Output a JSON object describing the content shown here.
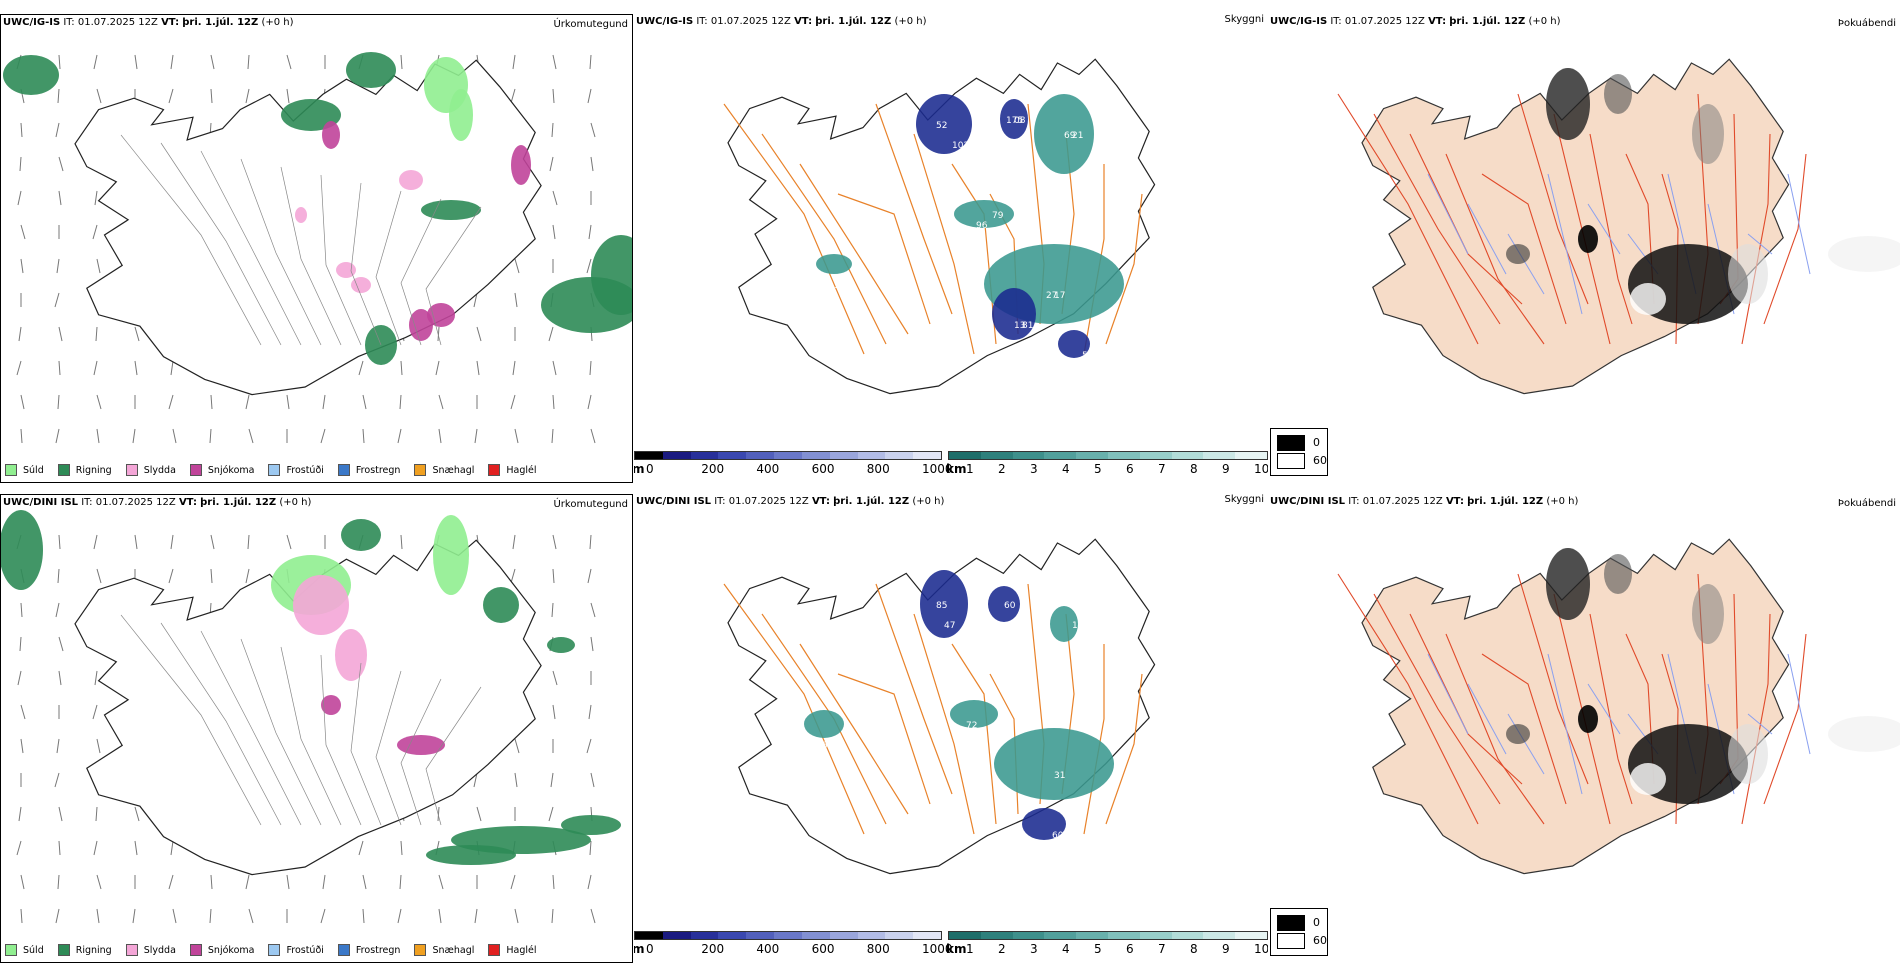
{
  "rows": [
    {
      "model": "UWC/IG-IS",
      "init_prefix": "IT:",
      "init_time": "01.07.2025 12Z",
      "valid_prefix": "VT:",
      "valid_time": "þri. 1.júl. 12Z",
      "lead": "(+0 h)",
      "precip_title": "Úrkomutegund",
      "cloud_title": "Skyggni",
      "fog_title": "Þokuábendi",
      "vis_labels": [
        "52",
        "08",
        "21",
        "96",
        "17",
        "81",
        "135",
        "12",
        "102",
        "175",
        "69",
        "79",
        "27",
        "13",
        "57"
      ]
    },
    {
      "model": "UWC/DINI ISL",
      "init_prefix": "IT:",
      "init_time": "01.07.2025 12Z",
      "valid_prefix": "VT:",
      "valid_time": "þri. 1.júl. 12Z",
      "lead": "(+0 h)",
      "precip_title": "Úrkomutegund",
      "cloud_title": "Skyggni",
      "fog_title": "Þokuábendi",
      "vis_labels": [
        "85",
        "60",
        "150",
        "72",
        "31",
        "600",
        "06",
        "47",
        "13"
      ]
    }
  ],
  "precip_legend": [
    {
      "label": "Súld",
      "color": "#90ee90"
    },
    {
      "label": "Rigning",
      "color": "#2e8b57"
    },
    {
      "label": "Slydda",
      "color": "#f4a6d7"
    },
    {
      "label": "Snjókoma",
      "color": "#c0449a"
    },
    {
      "label": "Frostúði",
      "color": "#9cc8f0"
    },
    {
      "label": "Frostregn",
      "color": "#3a78c8"
    },
    {
      "label": "Snæhagl",
      "color": "#f0a020"
    },
    {
      "label": "Haglél",
      "color": "#e02020"
    }
  ],
  "cloud_colorbar": {
    "unit": "m",
    "ticks": [
      "0",
      "200",
      "400",
      "600",
      "800",
      "1000"
    ],
    "colors": [
      "#000000",
      "#1a1a80",
      "#28309a",
      "#3a48b0",
      "#5260bc",
      "#6a78c8",
      "#8290d2",
      "#9aa6dc",
      "#b2bce6",
      "#cad2ee",
      "#e2e6f6"
    ]
  },
  "vis_colorbar": {
    "unit": "km",
    "ticks": [
      "1",
      "2",
      "3",
      "4",
      "5",
      "6",
      "7",
      "8",
      "9",
      "10"
    ],
    "colors": [
      "#1e6e6a",
      "#2e807c",
      "#3e908c",
      "#52a09c",
      "#68b0ac",
      "#80c0bc",
      "#98ceca",
      "#b2dcd8",
      "#cce8e6",
      "#e6f4f3"
    ]
  },
  "fog_legend": {
    "high": "0",
    "low": "60",
    "high_color": "#000000",
    "low_color": "#ffffff"
  },
  "colors": {
    "land_fog": "#f6dcc8",
    "road_orange": "#e8822a",
    "road_red": "#e04a2a",
    "river_blue": "#8aa0f0",
    "rain": "#2e8b57",
    "drizzle": "#90ee90",
    "sleet": "#f4a6d7",
    "snow": "#c0449a",
    "vis_dark": "#1a2a90",
    "vis_teal": "#3a9890"
  }
}
